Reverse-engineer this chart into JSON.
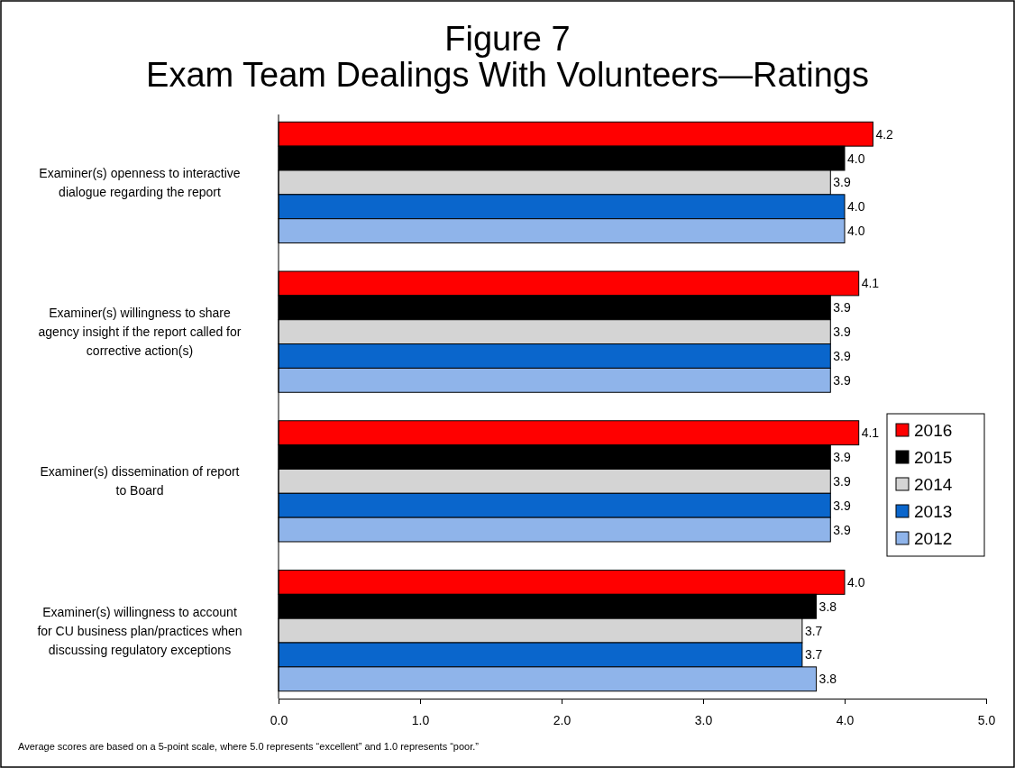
{
  "chart_data": {
    "type": "bar",
    "orientation": "horizontal",
    "title": "Figure 7",
    "subtitle": "Exam Team Dealings With Volunteers—Ratings",
    "categories": [
      "Examiner(s) openness to interactive dialogue regarding the report",
      "Examiner(s) willingness to share agency insight if the report called for corrective action(s)",
      "Examiner(s) dissemination of report to Board",
      "Examiner(s) willingness to account for CU business plan/practices when discussing regulatory exceptions"
    ],
    "series": [
      {
        "name": "2016",
        "color": "#ff0000",
        "values": [
          4.2,
          4.1,
          4.1,
          4.0
        ],
        "value_labels": [
          "4.2",
          "4.1",
          "4.1",
          "4.0"
        ]
      },
      {
        "name": "2015",
        "color": "#000000",
        "values": [
          4.0,
          3.9,
          3.9,
          3.8
        ],
        "value_labels": [
          "4.0",
          "3.9",
          "3.9",
          "3.8"
        ]
      },
      {
        "name": "2014",
        "color": "#d4d4d4",
        "values": [
          3.9,
          3.9,
          3.9,
          3.7
        ],
        "value_labels": [
          "3.9",
          "3.9",
          "3.9",
          "3.7"
        ]
      },
      {
        "name": "2013",
        "color": "#0a66cc",
        "values": [
          4.0,
          3.9,
          3.9,
          3.7
        ],
        "value_labels": [
          "4.0",
          "3.9",
          "3.9",
          "3.7"
        ]
      },
      {
        "name": "2012",
        "color": "#8fb4ea",
        "values": [
          4.0,
          3.9,
          3.9,
          3.8
        ],
        "value_labels": [
          "4.0",
          "3.9",
          "3.9",
          "3.8"
        ]
      }
    ],
    "xlim": [
      0,
      5
    ],
    "xticks": [
      {
        "value": 0,
        "label": "0.0"
      },
      {
        "value": 1,
        "label": "1.0"
      },
      {
        "value": 2,
        "label": "2.0"
      },
      {
        "value": 3,
        "label": "3.0"
      },
      {
        "value": 4,
        "label": "4.0"
      },
      {
        "value": 5,
        "label": "5.0"
      }
    ],
    "grid": false,
    "legend": "right",
    "annotations": [
      "Average scores are based on a 5-point scale, where 5.0 represents “excellent” and 1.0 represents “poor.”"
    ]
  }
}
